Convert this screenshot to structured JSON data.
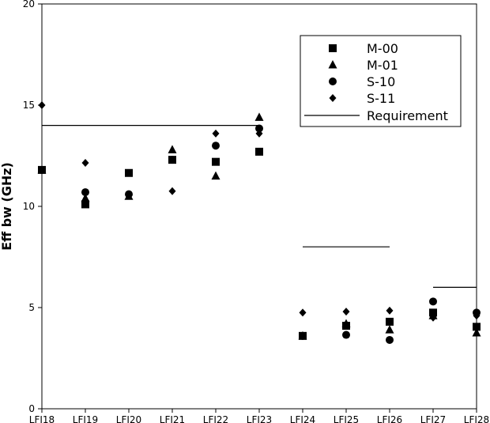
{
  "chart_data": {
    "type": "scatter",
    "categories": [
      "LFI18",
      "LFI19",
      "LFI20",
      "LFI21",
      "LFI22",
      "LFI23",
      "LFI24",
      "LFI25",
      "LFI26",
      "LFI27",
      "LFI28"
    ],
    "ylabel": "Eff bw (GHz)",
    "xlabel": "",
    "ylim": [
      0,
      20
    ],
    "yticks": [
      0,
      5,
      10,
      15,
      20
    ],
    "grid": false,
    "legend_position": "top-right",
    "series": [
      {
        "name": "M-00",
        "marker": "square",
        "values": [
          11.8,
          10.1,
          11.65,
          12.3,
          12.2,
          12.7,
          3.6,
          4.1,
          4.3,
          4.75,
          4.05
        ]
      },
      {
        "name": "M-01",
        "marker": "triangle",
        "values": [
          11.8,
          10.4,
          10.5,
          12.8,
          11.5,
          14.4,
          3.6,
          4.2,
          3.9,
          4.6,
          3.75
        ]
      },
      {
        "name": "S-10",
        "marker": "circle",
        "values": [
          11.8,
          10.7,
          10.6,
          12.3,
          13.0,
          13.85,
          3.6,
          3.65,
          3.4,
          5.3,
          4.75
        ]
      },
      {
        "name": "S-11",
        "marker": "diamond",
        "values": [
          15.0,
          12.15,
          10.55,
          10.75,
          13.6,
          13.6,
          4.75,
          4.8,
          4.85,
          4.5,
          4.6
        ]
      }
    ],
    "requirement": {
      "name": "Requirement",
      "segments": [
        {
          "from": "LFI18",
          "to": "LFI23",
          "value": 14
        },
        {
          "from": "LFI24",
          "to": "LFI26",
          "value": 8
        },
        {
          "from": "LFI27",
          "to": "LFI28",
          "value": 6
        }
      ]
    }
  }
}
